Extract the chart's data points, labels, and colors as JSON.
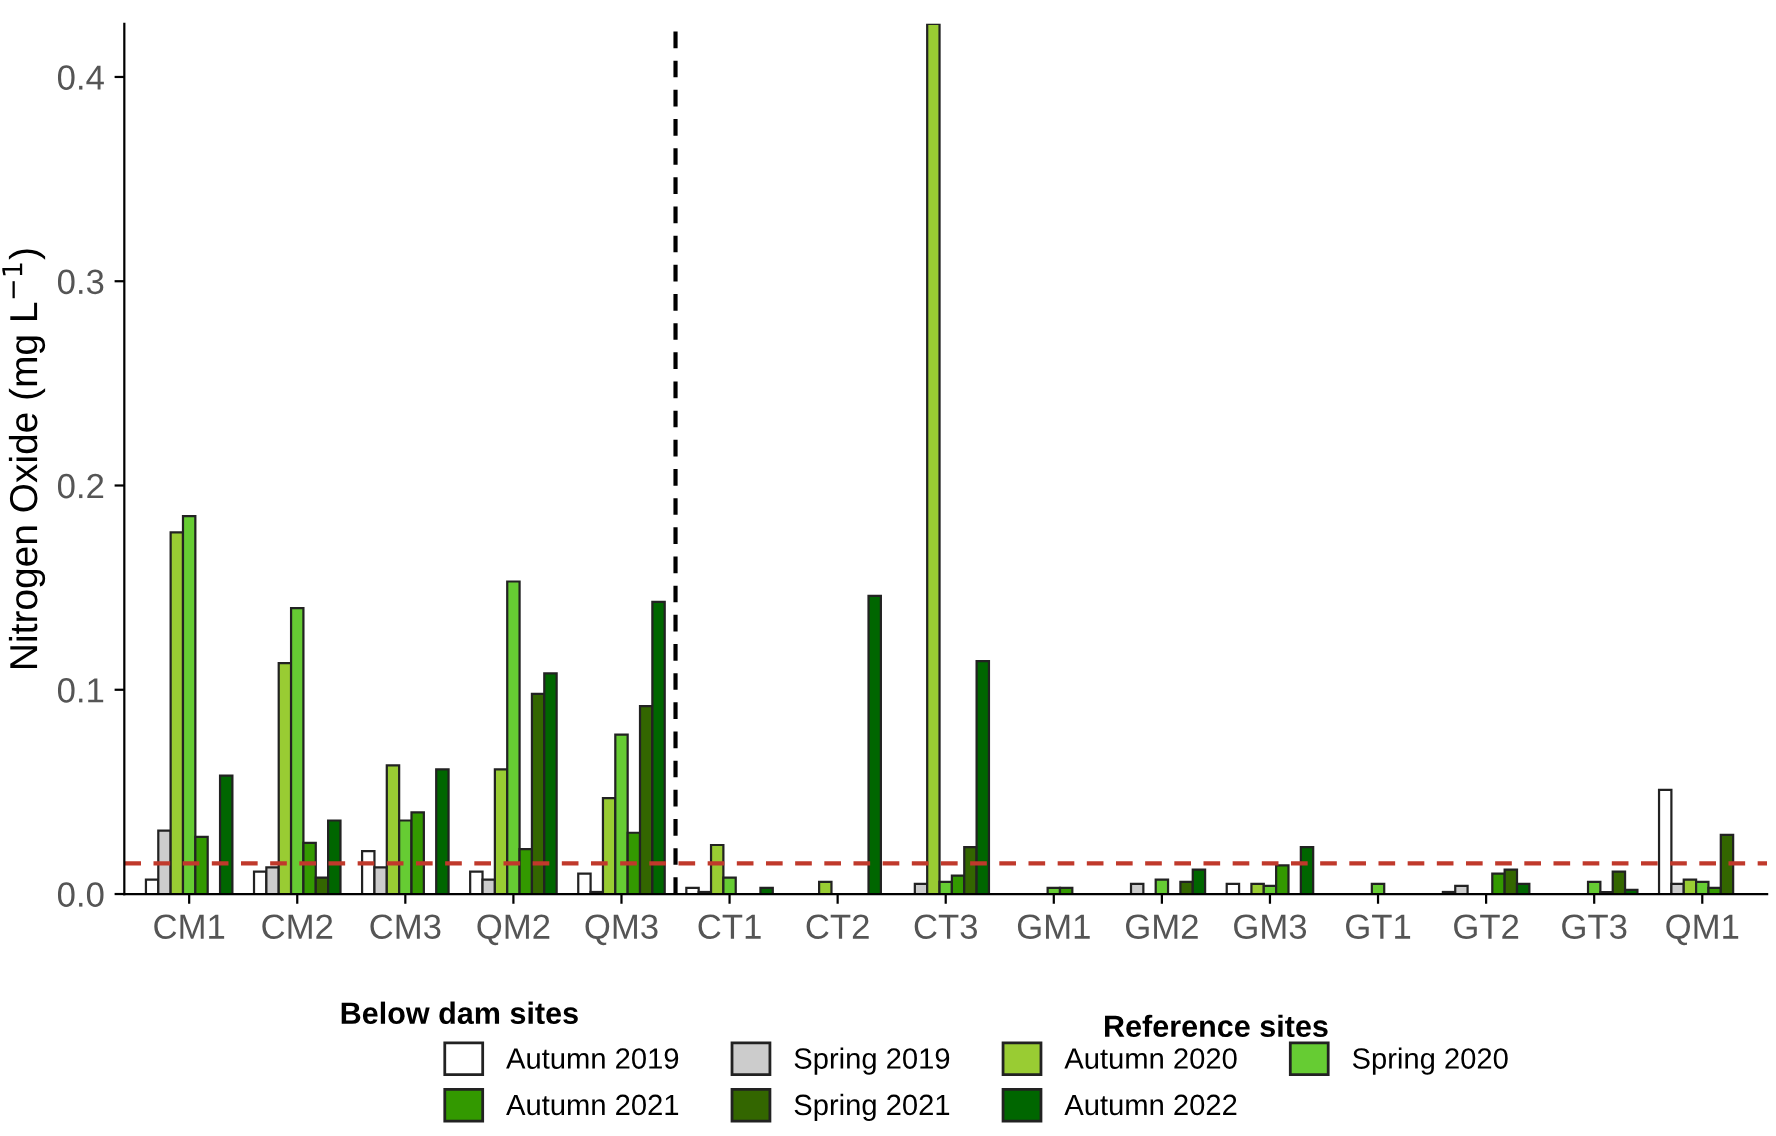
{
  "chart_data": {
    "type": "bar",
    "ylabel": "Nitrogen Oxide (mg L$^{−1}$)",
    "categories": [
      "CM1",
      "CM2",
      "CM3",
      "QM2",
      "QM3",
      "CT1",
      "CT2",
      "CT3",
      "GM1",
      "GM2",
      "GM3",
      "GT1",
      "GT2",
      "GT3",
      "QM1"
    ],
    "series": [
      {
        "name": "Autumn 2019",
        "color": "#ffffff",
        "values": [
          0.007,
          0.011,
          0.021,
          0.011,
          0.01,
          0.003,
          null,
          null,
          null,
          null,
          0.005,
          null,
          0.001,
          null,
          0.051
        ]
      },
      {
        "name": "Spring 2019",
        "color": "#cccccc",
        "values": [
          0.031,
          0.013,
          0.013,
          0.007,
          0.001,
          0.001,
          null,
          0.005,
          null,
          0.005,
          null,
          null,
          0.004,
          null,
          0.005
        ]
      },
      {
        "name": "Autumn 2020",
        "color": "#99cc33",
        "values": [
          0.177,
          0.113,
          0.063,
          0.061,
          0.047,
          0.024,
          0.006,
          0.426,
          null,
          null,
          0.005,
          null,
          null,
          null,
          0.007
        ]
      },
      {
        "name": "Spring 2020",
        "color": "#66cc33",
        "values": [
          0.185,
          0.14,
          0.036,
          0.153,
          0.078,
          0.008,
          null,
          0.006,
          0.003,
          0.007,
          0.004,
          0.005,
          null,
          0.006,
          0.006
        ]
      },
      {
        "name": "Autumn 2021",
        "color": "#339900",
        "values": [
          0.028,
          0.025,
          0.04,
          0.022,
          0.03,
          null,
          null,
          0.009,
          0.003,
          null,
          0.014,
          null,
          0.01,
          0.001,
          0.003
        ]
      },
      {
        "name": "Spring 2021",
        "color": "#336600",
        "values": [
          null,
          0.008,
          null,
          0.098,
          0.092,
          null,
          null,
          0.023,
          null,
          0.006,
          null,
          null,
          0.012,
          0.011,
          0.029
        ]
      },
      {
        "name": "Autumn 2022",
        "color": "#006600",
        "values": [
          0.058,
          0.036,
          0.061,
          0.108,
          0.143,
          0.003,
          0.146,
          0.114,
          null,
          0.012,
          0.023,
          null,
          0.005,
          0.002,
          null
        ]
      }
    ],
    "ylim": [
      0,
      0.426
    ],
    "yticks": [
      {
        "value": 0,
        "label": "0.0"
      },
      {
        "value": 0.1,
        "label": "0.1"
      },
      {
        "value": 0.2,
        "label": "0.2"
      },
      {
        "value": 0.3,
        "label": "0.3"
      },
      {
        "value": 0.4,
        "label": "0.4"
      }
    ],
    "ref_lines": [
      {
        "axis": "y",
        "value": 0.015,
        "color": "#c0392b",
        "line_style": "dashed"
      }
    ],
    "annotations": [
      "Below dam sites",
      "Reference sites"
    ],
    "grid": false,
    "legend": "bottom"
  }
}
